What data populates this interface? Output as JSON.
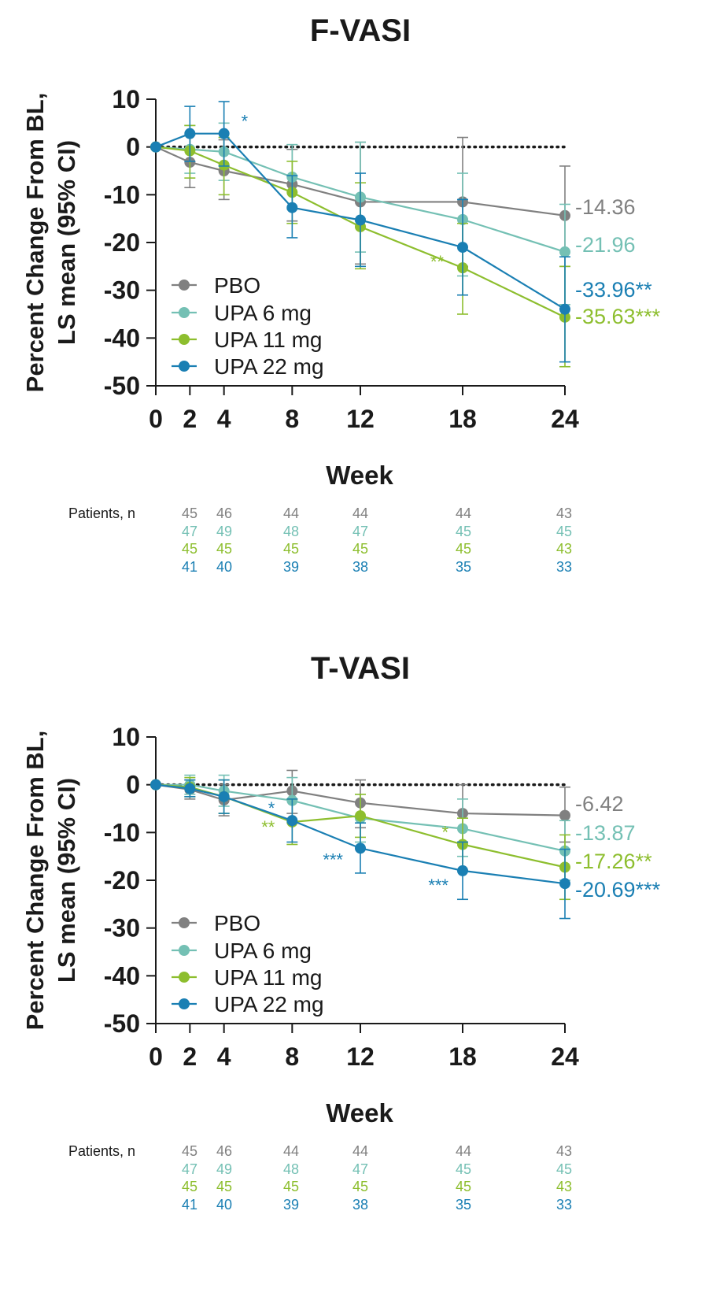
{
  "patients_label": "Patients, n",
  "chart_data": [
    {
      "type": "line",
      "title": "F-VASI",
      "ylabel_line1": "Percent Change From BL,",
      "ylabel_line2": "LS mean (95% CI)",
      "xlabel": "Week",
      "x": [
        0,
        2,
        4,
        8,
        12,
        18,
        24
      ],
      "x_ticks": [
        "0",
        "2",
        "4",
        "8",
        "12",
        "18",
        "24"
      ],
      "ylim": [
        -50,
        10
      ],
      "y_ticks": [
        "10",
        "0",
        "-10",
        "-20",
        "-30",
        "-40",
        "-50"
      ],
      "reference_line": 0,
      "legend": [
        "PBO",
        "UPA 6 mg",
        "UPA 11 mg",
        "UPA 22 mg"
      ],
      "series": [
        {
          "name": "PBO",
          "color": "#808080",
          "values": [
            0,
            -3.2,
            -5,
            -7.8,
            -11.5,
            -11.5,
            -14.36
          ],
          "ci_low": [
            0,
            -8.5,
            -11,
            -15.5,
            -24.5,
            -25,
            -25
          ],
          "ci_high": [
            0,
            2.5,
            1.5,
            -0.5,
            1,
            2,
            -4
          ],
          "end_label": "-14.36",
          "patients": [
            "45",
            "46",
            "44",
            "44",
            "44",
            "43"
          ]
        },
        {
          "name": "UPA 6 mg",
          "color": "#74c0b4",
          "values": [
            0,
            -0.5,
            -1,
            -6.3,
            -10.5,
            -15.2,
            -21.96
          ],
          "ci_low": [
            0,
            -5.5,
            -7,
            -13,
            -22,
            -27,
            -33
          ],
          "ci_high": [
            0,
            4.5,
            5,
            0.5,
            1,
            -5.5,
            -12
          ],
          "end_label": "-21.96",
          "patients": [
            "47",
            "49",
            "48",
            "47",
            "45",
            "45"
          ]
        },
        {
          "name": "UPA 11 mg",
          "color": "#8dbe2e",
          "values": [
            0,
            -0.8,
            -3.8,
            -9.5,
            -16.7,
            -25.3,
            -35.63
          ],
          "ci_low": [
            0,
            -6.5,
            -10,
            -16,
            -25.5,
            -35,
            -46
          ],
          "ci_high": [
            0,
            4.5,
            2,
            -3,
            -7.5,
            -16,
            -25
          ],
          "end_label": "-35.63",
          "end_sig": "***",
          "patients": [
            "45",
            "45",
            "45",
            "45",
            "45",
            "43"
          ]
        },
        {
          "name": "UPA 22 mg",
          "color": "#1a7fb3",
          "values": [
            0,
            2.8,
            2.8,
            -12.7,
            -15.3,
            -21,
            -33.96
          ],
          "ci_low": [
            0,
            -3,
            -4,
            -19,
            -25,
            -31,
            -45
          ],
          "ci_high": [
            0,
            8.5,
            9.5,
            -6,
            -5.5,
            -11,
            -23
          ],
          "end_label": "-33.96",
          "end_sig": "**",
          "patients": [
            "41",
            "40",
            "39",
            "38",
            "35",
            "33"
          ]
        }
      ],
      "annotations": [
        {
          "text": "*",
          "series": "UPA 22 mg",
          "x": 4
        },
        {
          "text": "**",
          "series": "UPA 11 mg",
          "x": 18
        }
      ]
    },
    {
      "type": "line",
      "title": "T-VASI",
      "ylabel_line1": "Percent Change From BL,",
      "ylabel_line2": "LS mean (95% CI)",
      "xlabel": "Week",
      "x": [
        0,
        2,
        4,
        8,
        12,
        18,
        24
      ],
      "x_ticks": [
        "0",
        "2",
        "4",
        "8",
        "12",
        "18",
        "24"
      ],
      "ylim": [
        -50,
        10
      ],
      "y_ticks": [
        "10",
        "0",
        "-10",
        "-20",
        "-30",
        "-40",
        "-50"
      ],
      "reference_line": 0,
      "legend": [
        "PBO",
        "UPA 6 mg",
        "UPA 11 mg",
        "UPA 22 mg"
      ],
      "series": [
        {
          "name": "PBO",
          "color": "#808080",
          "values": [
            0,
            -1,
            -3.2,
            -1.3,
            -3.8,
            -6,
            -6.42
          ],
          "ci_low": [
            0,
            -3,
            -6.5,
            -6,
            -9,
            -12,
            -12
          ],
          "ci_high": [
            0,
            1,
            0,
            3,
            1,
            0,
            -0.5
          ],
          "end_label": "-6.42",
          "patients": [
            "45",
            "46",
            "44",
            "44",
            "44",
            "43"
          ]
        },
        {
          "name": "UPA 6 mg",
          "color": "#74c0b4",
          "values": [
            0,
            0,
            -1.3,
            -3.3,
            -7,
            -9.2,
            -13.87
          ],
          "ci_low": [
            0,
            -2,
            -4.5,
            -8,
            -12,
            -15,
            -20
          ],
          "ci_high": [
            0,
            2,
            2,
            1.5,
            -2,
            -3,
            -7.5
          ],
          "end_label": "-13.87",
          "patients": [
            "47",
            "49",
            "48",
            "47",
            "45",
            "45"
          ]
        },
        {
          "name": "UPA 11 mg",
          "color": "#8dbe2e",
          "values": [
            0,
            -0.5,
            -2.5,
            -7.8,
            -6.5,
            -12.5,
            -17.26
          ],
          "ci_low": [
            0,
            -2.5,
            -6,
            -12.5,
            -11,
            -18,
            -24
          ],
          "ci_high": [
            0,
            1.5,
            1,
            -3,
            -2,
            -7,
            -10.5
          ],
          "end_label": "-17.26",
          "end_sig": "**",
          "patients": [
            "45",
            "45",
            "45",
            "45",
            "45",
            "43"
          ]
        },
        {
          "name": "UPA 22 mg",
          "color": "#1a7fb3",
          "values": [
            0,
            -0.8,
            -2.5,
            -7.5,
            -13.3,
            -18,
            -20.69
          ],
          "ci_low": [
            0,
            -2.5,
            -6,
            -12,
            -18.5,
            -24,
            -28
          ],
          "ci_high": [
            0,
            1,
            1,
            -3,
            -8,
            -12,
            -13.5
          ],
          "end_label": "-20.69",
          "end_sig": "***",
          "patients": [
            "41",
            "40",
            "39",
            "38",
            "35",
            "33"
          ]
        }
      ],
      "annotations": [
        {
          "text": "*",
          "series": "UPA 22 mg",
          "x": 8
        },
        {
          "text": "**",
          "series": "UPA 11 mg",
          "x": 8
        },
        {
          "text": "***",
          "series": "UPA 22 mg",
          "x": 12
        },
        {
          "text": "*",
          "series": "UPA 11 mg",
          "x": 18
        },
        {
          "text": "***",
          "series": "UPA 22 mg",
          "x": 18
        }
      ]
    }
  ]
}
